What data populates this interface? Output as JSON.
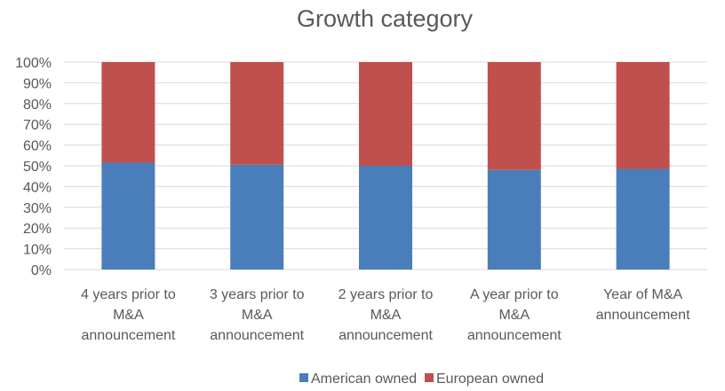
{
  "chart_data": {
    "type": "bar",
    "stacked": true,
    "title": "Growth category",
    "categories": [
      [
        "4 years prior to",
        "M&A",
        "announcement"
      ],
      [
        "3 years prior to",
        "M&A",
        "announcement"
      ],
      [
        "2 years prior to",
        "M&A",
        "announcement"
      ],
      [
        "A year prior to",
        "M&A",
        "announcement"
      ],
      [
        "Year of M&A",
        "announcement"
      ]
    ],
    "series": [
      {
        "name": "American owned",
        "color": "#4a7ebb",
        "values": [
          51.5,
          50.5,
          50,
          48,
          48.5
        ]
      },
      {
        "name": "European owned",
        "color": "#c0504d",
        "values": [
          48.5,
          49.5,
          50,
          52,
          51.5
        ]
      }
    ],
    "y_ticks": [
      "0%",
      "10%",
      "20%",
      "30%",
      "40%",
      "50%",
      "60%",
      "70%",
      "80%",
      "90%",
      "100%"
    ],
    "ylim": [
      0,
      100
    ],
    "grid": true,
    "legend_position": "bottom"
  }
}
